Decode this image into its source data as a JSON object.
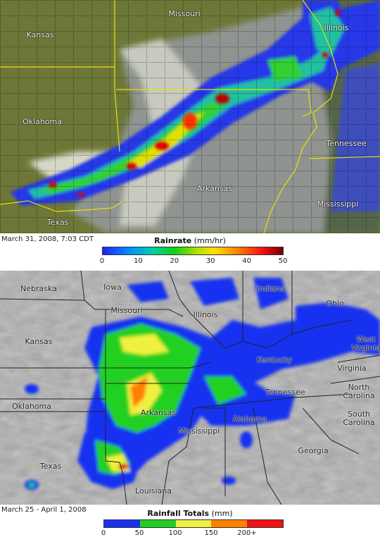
{
  "panels": [
    {
      "labels": [
        "Kansas",
        "Missouri",
        "Illinois",
        "Oklahoma",
        "Tennessee",
        "Arkansas",
        "Mississippi",
        "Texas"
      ],
      "caption": "March 31, 2008, 7:03 CDT",
      "legend": {
        "title": "Rainrate",
        "unit": "(mm/hr)",
        "ticks": [
          0,
          10,
          20,
          30,
          40,
          50
        ]
      }
    },
    {
      "labels": [
        "Nebraska",
        "Iowa",
        "Indiana",
        "Ohio",
        "Missouri",
        "Illinois",
        "Kansas",
        "West Virginia",
        "Kentucky",
        "Virginia",
        "Tennessee",
        "North Carolina",
        "Oklahoma",
        "Arkansas",
        "Alabama",
        "South Carolina",
        "Texas",
        "Mississippi",
        "Georgia",
        "Louisiana"
      ],
      "caption": "March 25 - April 1, 2008",
      "legend": {
        "title": "Rainfall Totals",
        "unit": "(mm)",
        "ticks": [
          0,
          50,
          100,
          150,
          {
            "value": 200,
            "label": "200+"
          }
        ]
      }
    }
  ]
}
